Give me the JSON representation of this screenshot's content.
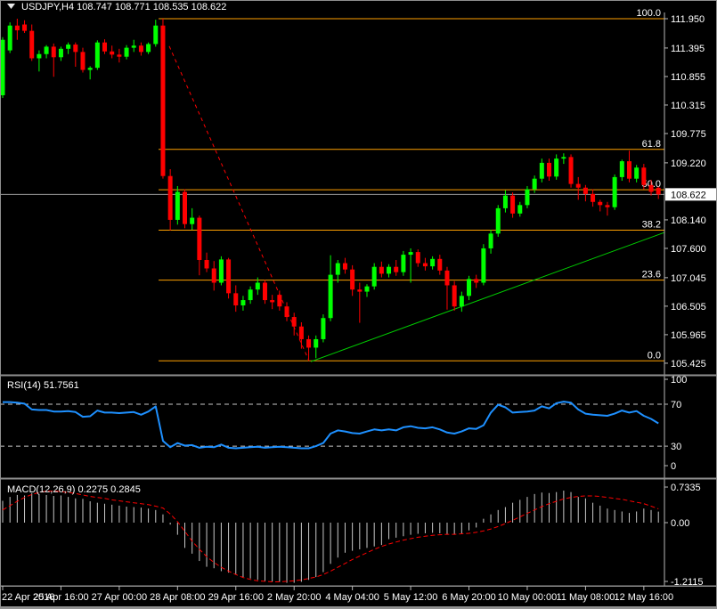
{
  "window": {
    "title_text": "USDJPY,H4  108.747 108.771 108.535 108.622",
    "symbol": "USDJPY",
    "timeframe": "H4",
    "current_bar": {
      "open": "108.747",
      "high": "108.771",
      "low": "108.535",
      "close": "108.622"
    }
  },
  "colors": {
    "background": "#000000",
    "bull_candle": "#00ff00",
    "bear_candle": "#ff0000",
    "fib_line": "#ffa000",
    "fib_label": "#ffa000",
    "current_price_line": "#9c9c9c",
    "price_box_bg": "#ffffff",
    "price_box_text": "#000000",
    "rsi_line": "#1e90ff",
    "level_dash": "#c8c8c8",
    "macd_histogram": "#c8c8c8",
    "macd_signal": "#ff0000",
    "axis_line": "#b8b8b8",
    "trend_red": "#ff0000",
    "trend_green": "#00cc00"
  },
  "chart_data": {
    "type": "candlestick",
    "title": "USDJPY,H4",
    "current_price": "108.622",
    "price_axis_labels": [
      111.95,
      111.395,
      110.855,
      110.315,
      109.775,
      109.22,
      108.14,
      107.6,
      107.045,
      106.505,
      105.965,
      105.425
    ],
    "x_axis_labels": [
      {
        "index": 0,
        "text": "22 Apr 2016"
      },
      {
        "index": 8,
        "text": "25 Apr 16:00"
      },
      {
        "index": 16,
        "text": "27 Apr 00:00"
      },
      {
        "index": 24,
        "text": "28 Apr 08:00"
      },
      {
        "index": 32,
        "text": "29 Apr 16:00"
      },
      {
        "index": 40,
        "text": "2 May 20:00"
      },
      {
        "index": 48,
        "text": "4 May 04:00"
      },
      {
        "index": 56,
        "text": "5 May 12:00"
      },
      {
        "index": 64,
        "text": "6 May 20:00"
      },
      {
        "index": 72,
        "text": "10 May 00:00"
      },
      {
        "index": 80,
        "text": "11 May 08:00"
      },
      {
        "index": 88,
        "text": "12 May 16:00"
      }
    ],
    "fibonacci": {
      "start_index": 21.4,
      "levels": [
        {
          "label": "100.0",
          "price": 111.95
        },
        {
          "label": "61.8",
          "price": 109.475
        },
        {
          "label": "50.0",
          "price": 108.71
        },
        {
          "label": "38.2",
          "price": 107.945
        },
        {
          "label": "23.6",
          "price": 106.999
        },
        {
          "label": "0.0",
          "price": 105.47
        }
      ]
    },
    "trendlines": [
      {
        "name": "descending-dashed",
        "style": "dashed",
        "color_key": "trend_red",
        "from": {
          "index": 22.86,
          "price": 111.43
        },
        "to": {
          "index": 42.05,
          "price": 105.47
        }
      },
      {
        "name": "ascending-support",
        "style": "solid",
        "color_key": "trend_green",
        "from": {
          "index": 42.3,
          "price": 105.455
        },
        "to": {
          "index": 90.8,
          "price": 107.9
        }
      }
    ],
    "candles_ohlc": [
      [
        110.5,
        111.6,
        110.45,
        111.55
      ],
      [
        111.35,
        111.88,
        111.3,
        111.82
      ],
      [
        111.82,
        111.95,
        111.55,
        111.73
      ],
      [
        111.84,
        111.92,
        111.68,
        111.72
      ],
      [
        111.72,
        111.84,
        111.15,
        111.2
      ],
      [
        111.2,
        111.35,
        110.95,
        111.28
      ],
      [
        111.28,
        111.45,
        111.2,
        111.42
      ],
      [
        111.42,
        111.48,
        110.85,
        111.22
      ],
      [
        111.22,
        111.42,
        111.15,
        111.38
      ],
      [
        111.38,
        111.5,
        111.28,
        111.46
      ],
      [
        111.46,
        111.5,
        111.04,
        111.32
      ],
      [
        111.32,
        111.4,
        110.93,
        110.98
      ],
      [
        110.98,
        111.05,
        110.8,
        111.02
      ],
      [
        111.02,
        111.54,
        110.98,
        111.5
      ],
      [
        111.5,
        111.56,
        111.28,
        111.33
      ],
      [
        111.33,
        111.44,
        111.2,
        111.27
      ],
      [
        111.27,
        111.38,
        111.12,
        111.23
      ],
      [
        111.23,
        111.45,
        111.18,
        111.4
      ],
      [
        111.4,
        111.55,
        111.32,
        111.44
      ],
      [
        111.44,
        111.5,
        111.25,
        111.32
      ],
      [
        111.32,
        111.5,
        111.28,
        111.47
      ],
      [
        111.47,
        111.93,
        111.42,
        111.82
      ],
      [
        111.82,
        111.95,
        108.92,
        108.97
      ],
      [
        108.97,
        109.1,
        107.94,
        108.14
      ],
      [
        108.14,
        108.78,
        108.05,
        108.67
      ],
      [
        108.67,
        108.72,
        107.98,
        108.06
      ],
      [
        108.06,
        108.36,
        107.95,
        108.18
      ],
      [
        108.18,
        108.22,
        107.09,
        107.38
      ],
      [
        107.38,
        107.52,
        107.15,
        107.22
      ],
      [
        107.22,
        107.36,
        106.8,
        106.95
      ],
      [
        106.95,
        107.45,
        106.9,
        107.39
      ],
      [
        107.39,
        107.42,
        106.65,
        106.75
      ],
      [
        106.75,
        106.9,
        106.4,
        106.52
      ],
      [
        106.52,
        106.7,
        106.42,
        106.62
      ],
      [
        106.62,
        106.88,
        106.55,
        106.82
      ],
      [
        106.82,
        107.05,
        106.72,
        106.95
      ],
      [
        106.95,
        107.0,
        106.55,
        106.62
      ],
      [
        106.62,
        106.72,
        106.45,
        106.58
      ],
      [
        106.72,
        106.8,
        106.42,
        106.5
      ],
      [
        106.5,
        106.58,
        106.22,
        106.3
      ],
      [
        106.3,
        106.38,
        105.95,
        106.12
      ],
      [
        106.12,
        106.2,
        105.7,
        105.88
      ],
      [
        105.88,
        105.95,
        105.5,
        105.72
      ],
      [
        105.72,
        105.95,
        105.52,
        105.88
      ],
      [
        105.88,
        106.35,
        105.82,
        106.28
      ],
      [
        106.28,
        107.47,
        106.22,
        107.1
      ],
      [
        107.1,
        107.38,
        106.95,
        107.32
      ],
      [
        107.32,
        107.42,
        107.12,
        107.2
      ],
      [
        107.2,
        107.28,
        106.7,
        106.82
      ],
      [
        106.82,
        106.95,
        106.19,
        106.78
      ],
      [
        106.78,
        106.92,
        106.68,
        106.88
      ],
      [
        106.88,
        107.32,
        106.82,
        107.25
      ],
      [
        107.25,
        107.35,
        107.05,
        107.12
      ],
      [
        107.12,
        107.3,
        107.05,
        107.25
      ],
      [
        107.25,
        107.38,
        107.08,
        107.15
      ],
      [
        107.15,
        107.55,
        107.08,
        107.48
      ],
      [
        107.48,
        107.6,
        106.95,
        107.53
      ],
      [
        107.53,
        107.58,
        107.25,
        107.32
      ],
      [
        107.32,
        107.42,
        107.18,
        107.26
      ],
      [
        107.26,
        107.45,
        107.2,
        107.4
      ],
      [
        107.4,
        107.48,
        107.1,
        107.18
      ],
      [
        107.18,
        107.25,
        106.44,
        106.9
      ],
      [
        106.9,
        106.98,
        106.42,
        106.5
      ],
      [
        106.5,
        106.78,
        106.4,
        106.7
      ],
      [
        106.7,
        107.08,
        106.62,
        107.02
      ],
      [
        107.02,
        107.1,
        106.85,
        106.95
      ],
      [
        106.95,
        107.68,
        106.9,
        107.6
      ],
      [
        107.6,
        107.95,
        107.5,
        107.88
      ],
      [
        107.88,
        108.42,
        107.82,
        108.36
      ],
      [
        108.36,
        108.7,
        108.28,
        108.6
      ],
      [
        108.6,
        108.66,
        108.18,
        108.26
      ],
      [
        108.26,
        108.48,
        108.2,
        108.42
      ],
      [
        108.42,
        108.78,
        108.36,
        108.72
      ],
      [
        108.72,
        108.98,
        108.65,
        108.92
      ],
      [
        108.92,
        109.3,
        108.85,
        109.22
      ],
      [
        109.22,
        109.3,
        108.88,
        108.96
      ],
      [
        108.96,
        109.38,
        108.9,
        109.3
      ],
      [
        109.3,
        109.4,
        109.2,
        109.33
      ],
      [
        109.33,
        109.38,
        108.75,
        108.82
      ],
      [
        108.82,
        108.95,
        108.52,
        108.75
      ],
      [
        108.75,
        108.8,
        108.49,
        108.63
      ],
      [
        108.63,
        108.72,
        108.39,
        108.48
      ],
      [
        108.48,
        108.52,
        108.3,
        108.42
      ],
      [
        108.42,
        108.48,
        108.22,
        108.38
      ],
      [
        108.38,
        109.0,
        108.33,
        108.95
      ],
      [
        108.95,
        109.28,
        108.88,
        109.25
      ],
      [
        109.25,
        109.45,
        108.85,
        108.92
      ],
      [
        108.92,
        109.18,
        108.85,
        109.13
      ],
      [
        109.13,
        109.2,
        108.72,
        108.8
      ],
      [
        108.8,
        108.9,
        108.6,
        108.67
      ],
      [
        108.747,
        108.771,
        108.535,
        108.622
      ]
    ],
    "indicators": {
      "rsi": {
        "label": "RSI(14) 51.7561",
        "period": 14,
        "current_value": 51.7561,
        "axis_labels": [
          100,
          70,
          30,
          0
        ],
        "overbought": 70,
        "oversold": 30,
        "values": [
          72,
          72,
          71.5,
          70.5,
          65,
          64.5,
          64.5,
          63,
          63,
          63.5,
          62.5,
          58,
          58.5,
          64,
          62,
          62,
          61.5,
          62,
          62.5,
          60,
          63,
          68,
          35,
          29,
          33,
          30.5,
          31,
          28.5,
          29.5,
          29,
          31.5,
          28.5,
          28,
          28.5,
          29,
          29.5,
          28.5,
          29,
          29.5,
          29,
          28.5,
          28,
          28,
          30,
          33,
          42,
          45,
          44,
          42.5,
          42,
          44,
          46,
          45,
          46,
          45,
          48,
          49,
          47.5,
          47,
          48,
          46,
          43,
          42,
          44,
          47,
          46.5,
          50,
          62,
          69.5,
          67,
          62,
          62.5,
          63,
          64,
          68,
          66,
          71,
          72.5,
          71.5,
          65,
          61,
          60,
          59.5,
          59,
          61,
          64,
          62,
          63.5,
          59,
          56,
          51.76
        ]
      },
      "macd": {
        "label": "MACD(12,26,9) 0.2275 0.2845",
        "current_macd": 0.2275,
        "current_signal": 0.2845,
        "axis_labels": [
          "0.7335",
          "0.00",
          "-1.2115"
        ],
        "axis_values": [
          0.7335,
          0.0,
          -1.2115
        ],
        "histogram": [
          0.45,
          0.53,
          0.57,
          0.56,
          0.61,
          0.59,
          0.57,
          0.55,
          0.56,
          0.53,
          0.5,
          0.49,
          0.44,
          0.41,
          0.39,
          0.37,
          0.35,
          0.33,
          0.32,
          0.31,
          0.29,
          0.26,
          0.17,
          -0.04,
          -0.25,
          -0.52,
          -0.64,
          -0.79,
          -0.91,
          -0.94,
          -1.0,
          -1.03,
          -1.06,
          -1.12,
          -1.15,
          -1.18,
          -1.21,
          -1.21,
          -1.22,
          -1.24,
          -1.24,
          -1.22,
          -1.18,
          -1.12,
          -1.02,
          -0.85,
          -0.72,
          -0.62,
          -0.58,
          -0.55,
          -0.52,
          -0.49,
          -0.46,
          -0.34,
          -0.31,
          -0.28,
          -0.25,
          -0.23,
          -0.22,
          -0.21,
          -0.22,
          -0.25,
          -0.25,
          -0.22,
          -0.16,
          -0.1,
          0.08,
          0.17,
          0.26,
          0.32,
          0.41,
          0.47,
          0.53,
          0.59,
          0.62,
          0.61,
          0.63,
          0.66,
          0.63,
          0.53,
          0.5,
          0.41,
          0.35,
          0.29,
          0.26,
          0.23,
          0.2,
          0.23,
          0.29,
          0.26,
          0.2275
        ],
        "signal": [
          0.26,
          0.35,
          0.44,
          0.52,
          0.58,
          0.62,
          0.65,
          0.65,
          0.64,
          0.62,
          0.6,
          0.57,
          0.54,
          0.52,
          0.5,
          0.47,
          0.45,
          0.43,
          0.41,
          0.39,
          0.37,
          0.34,
          0.3,
          0.18,
          0.02,
          -0.18,
          -0.38,
          -0.55,
          -0.7,
          -0.82,
          -0.92,
          -1.0,
          -1.07,
          -1.13,
          -1.17,
          -1.2,
          -1.21,
          -1.22,
          -1.22,
          -1.21,
          -1.2,
          -1.18,
          -1.15,
          -1.12,
          -1.07,
          -1.0,
          -0.92,
          -0.84,
          -0.76,
          -0.69,
          -0.62,
          -0.55,
          -0.49,
          -0.44,
          -0.4,
          -0.36,
          -0.33,
          -0.3,
          -0.28,
          -0.26,
          -0.25,
          -0.24,
          -0.24,
          -0.23,
          -0.22,
          -0.2,
          -0.17,
          -0.13,
          -0.08,
          -0.02,
          0.05,
          0.12,
          0.19,
          0.26,
          0.33,
          0.39,
          0.44,
          0.49,
          0.52,
          0.54,
          0.55,
          0.55,
          0.54,
          0.52,
          0.5,
          0.48,
          0.45,
          0.42,
          0.39,
          0.34,
          0.2845
        ]
      }
    }
  }
}
